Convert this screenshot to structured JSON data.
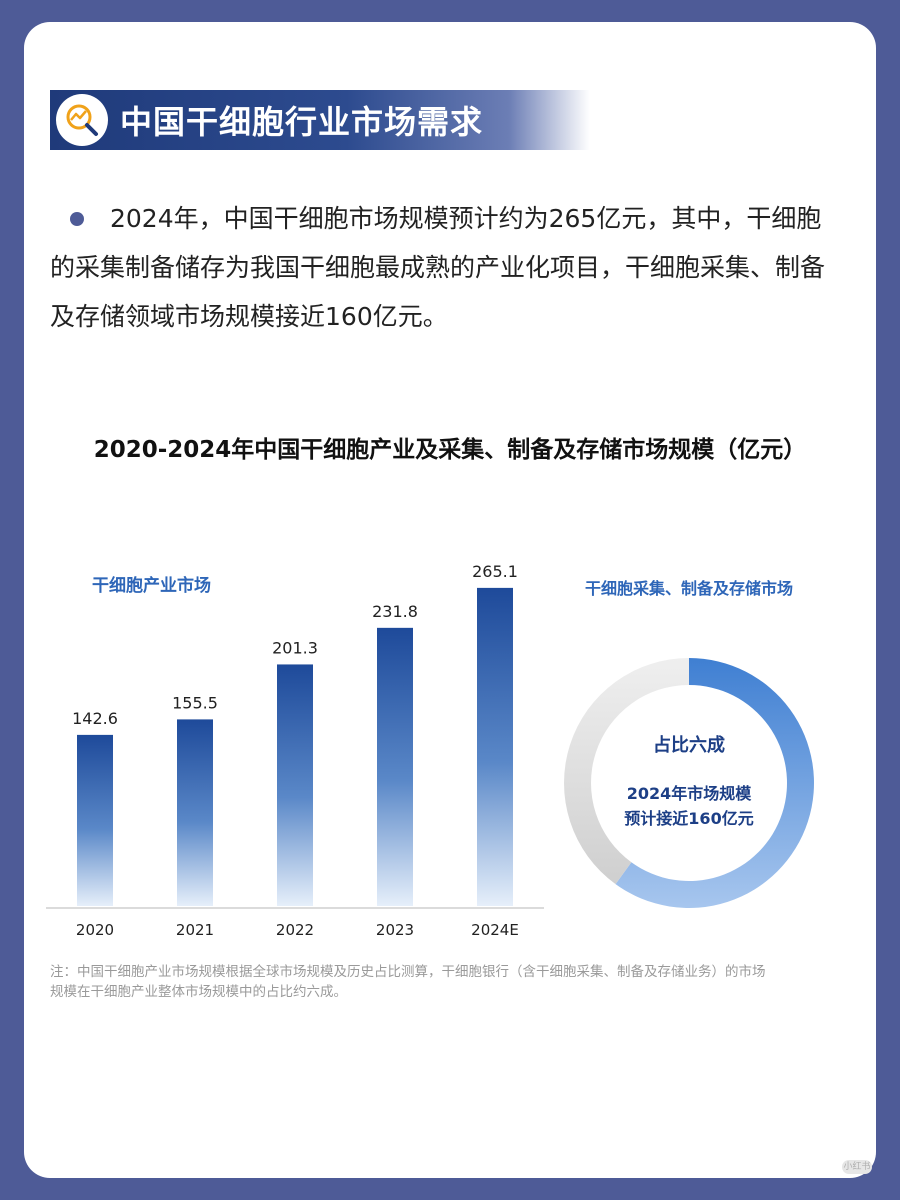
{
  "header": {
    "title": "中国干细胞行业市场需求",
    "icon": "chart-magnifier-icon"
  },
  "intro": {
    "text": "2024年，中国干细胞市场规模预计约为265亿元，其中，干细胞的采集制备储存为我国干细胞最成熟的产业化项目，干细胞采集、制备及存储领域市场规模接近160亿元。"
  },
  "note": "注：中国干细胞产业市场规模根据全球市场规模及历史占比测算，干细胞银行（含干细胞采集、制备及存储业务）的市场规模在干细胞产业整体市场规模中的占比约六成。",
  "badge": "小红书",
  "chart_data": [
    {
      "type": "bar",
      "title": "2020-2024年中国干细胞产业及采集、制备及存储市场规模（亿元）",
      "subtitle": "干细胞产业市场",
      "categories": [
        "2020",
        "2021",
        "2022",
        "2023",
        "2024E"
      ],
      "values": [
        142.6,
        155.5,
        201.3,
        231.8,
        265.1
      ],
      "value_labels": [
        "142.6",
        "155.5",
        "201.3",
        "231.8",
        "265.1"
      ],
      "ylim": [
        0,
        280
      ],
      "grid": false,
      "colors": {
        "bar_top": "#1e4a9a",
        "bar_bottom": "#e6effa"
      }
    },
    {
      "type": "pie",
      "title": "干细胞采集、制备及存储市场",
      "slices": [
        {
          "label": "占比六成",
          "value": 60,
          "color": "#4a86d6"
        },
        {
          "label": "",
          "value": 40,
          "color": "#d9d9d9"
        }
      ],
      "center_text": [
        "占比六成",
        "2024年市场规模",
        "预计接近160亿元"
      ]
    }
  ]
}
